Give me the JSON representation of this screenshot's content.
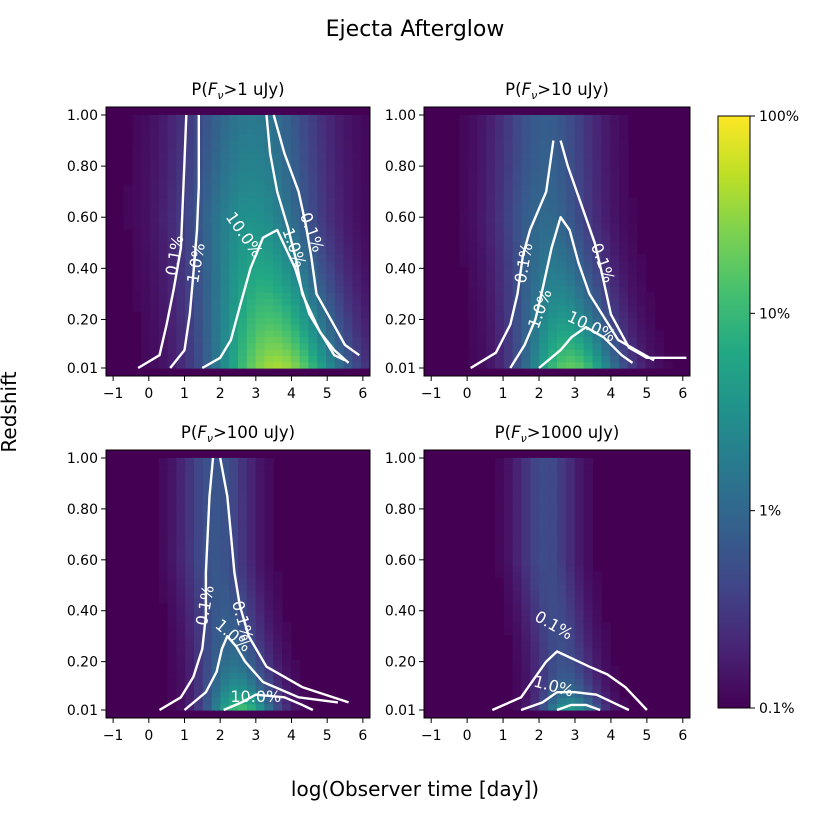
{
  "figure": {
    "title": "Ejecta Afterglow",
    "xlabel": "log(Observer time [day])",
    "ylabel": "Redshift"
  },
  "colorbar": {
    "ticks": [
      "100%",
      "10%",
      "1%",
      "0.1%"
    ],
    "scale": "log",
    "range": [
      0.1,
      100
    ],
    "colormap": "viridis"
  },
  "chart_data": [
    {
      "type": "heatmap",
      "title": "P(F_ν>1 uJy)",
      "title_prefix": "P(",
      "title_var": "F",
      "title_sub": "ν",
      "title_suffix": ">1 uJy)",
      "xlim": [
        -1.2,
        6.2
      ],
      "xticks": [
        "−1",
        "0",
        "1",
        "2",
        "3",
        "4",
        "5",
        "6"
      ],
      "yticks": [
        "0.01",
        "0.20",
        "0.40",
        "0.60",
        "0.80",
        "1.00"
      ],
      "grid": false,
      "params": {
        "t_peak": 3.6,
        "spread": 1.9,
        "z_decay": 0.55,
        "max_log_pct": 1.65
      },
      "contours": [
        {
          "label": "0.1%",
          "points": [
            [
              -0.3,
              0.01
            ],
            [
              0.3,
              0.06
            ],
            [
              0.5,
              0.18
            ],
            [
              0.7,
              0.32
            ],
            [
              0.9,
              0.48
            ],
            [
              0.95,
              0.65
            ],
            [
              1.0,
              0.82
            ],
            [
              1.05,
              1.0
            ]
          ]
        },
        {
          "label": "1.0%",
          "points": [
            [
              0.6,
              0.01
            ],
            [
              1.0,
              0.08
            ],
            [
              1.15,
              0.22
            ],
            [
              1.25,
              0.38
            ],
            [
              1.35,
              0.55
            ],
            [
              1.4,
              0.72
            ],
            [
              1.4,
              0.88
            ],
            [
              1.4,
              1.0
            ]
          ]
        },
        {
          "label": "10.0%",
          "points": [
            [
              1.5,
              0.01
            ],
            [
              2.0,
              0.05
            ],
            [
              2.3,
              0.12
            ],
            [
              2.55,
              0.25
            ],
            [
              2.85,
              0.4
            ],
            [
              3.2,
              0.52
            ],
            [
              3.6,
              0.55
            ],
            [
              4.1,
              0.4
            ],
            [
              4.5,
              0.22
            ],
            [
              5.2,
              0.06
            ],
            [
              5.5,
              0.04
            ]
          ]
        },
        {
          "label": "1.0%",
          "points": [
            [
              3.3,
              1.0
            ],
            [
              3.4,
              0.85
            ],
            [
              3.6,
              0.7
            ],
            [
              3.9,
              0.56
            ],
            [
              4.15,
              0.42
            ],
            [
              4.3,
              0.3
            ],
            [
              4.8,
              0.15
            ],
            [
              5.2,
              0.08
            ],
            [
              5.6,
              0.03
            ]
          ]
        },
        {
          "label": "0.1%",
          "points": [
            [
              3.5,
              1.0
            ],
            [
              3.8,
              0.85
            ],
            [
              4.2,
              0.7
            ],
            [
              4.4,
              0.57
            ],
            [
              4.55,
              0.45
            ],
            [
              4.7,
              0.3
            ],
            [
              5.1,
              0.2
            ],
            [
              5.5,
              0.1
            ],
            [
              5.9,
              0.06
            ]
          ]
        }
      ],
      "contour_labels": [
        {
          "text": "0.1%",
          "x": 0.75,
          "y": 0.45,
          "angle": -80
        },
        {
          "text": "1.0%",
          "x": 1.35,
          "y": 0.42,
          "angle": -80
        },
        {
          "text": "10.0%",
          "x": 2.65,
          "y": 0.53,
          "angle": 55
        },
        {
          "text": "1.0%",
          "x": 4.05,
          "y": 0.48,
          "angle": 70
        },
        {
          "text": "0.1%",
          "x": 4.55,
          "y": 0.54,
          "angle": 70
        }
      ]
    },
    {
      "type": "heatmap",
      "title": "P(F_ν>10 uJy)",
      "title_prefix": "P(",
      "title_var": "F",
      "title_sub": "ν",
      "title_suffix": ">10 uJy)",
      "xlim": [
        -1.2,
        6.2
      ],
      "xticks": [
        "−1",
        "0",
        "1",
        "2",
        "3",
        "4",
        "5",
        "6"
      ],
      "yticks": [
        "0.01",
        "0.20",
        "0.40",
        "0.60",
        "0.80",
        "1.00"
      ],
      "grid": false,
      "params": {
        "t_peak": 2.9,
        "spread": 1.4,
        "z_decay": 0.3,
        "max_log_pct": 1.35
      },
      "contours": [
        {
          "label": "0.1%",
          "points": [
            [
              0.1,
              0.01
            ],
            [
              0.8,
              0.07
            ],
            [
              1.2,
              0.18
            ],
            [
              1.4,
              0.3
            ],
            [
              1.55,
              0.45
            ],
            [
              1.75,
              0.55
            ],
            [
              2.2,
              0.7
            ],
            [
              2.4,
              0.9
            ]
          ]
        },
        {
          "label": "1.0%",
          "points": [
            [
              1.2,
              0.01
            ],
            [
              1.6,
              0.1
            ],
            [
              1.9,
              0.2
            ],
            [
              2.1,
              0.32
            ],
            [
              2.35,
              0.48
            ],
            [
              2.6,
              0.6
            ],
            [
              2.85,
              0.55
            ],
            [
              3.1,
              0.42
            ],
            [
              3.4,
              0.3
            ],
            [
              4.2,
              0.12
            ],
            [
              5.2,
              0.04
            ]
          ]
        },
        {
          "label": "10.0%",
          "points": [
            [
              2.0,
              0.01
            ],
            [
              2.6,
              0.08
            ],
            [
              2.9,
              0.13
            ],
            [
              3.3,
              0.17
            ],
            [
              3.8,
              0.13
            ],
            [
              4.3,
              0.06
            ],
            [
              4.6,
              0.03
            ]
          ]
        },
        {
          "label": "0.1%",
          "points": [
            [
              2.6,
              0.9
            ],
            [
              2.8,
              0.8
            ],
            [
              3.1,
              0.68
            ],
            [
              3.55,
              0.5
            ],
            [
              3.75,
              0.38
            ],
            [
              4.0,
              0.22
            ],
            [
              4.5,
              0.09
            ],
            [
              5.0,
              0.05
            ],
            [
              6.1,
              0.05
            ]
          ]
        }
      ],
      "contour_labels": [
        {
          "text": "0.1%",
          "x": 1.6,
          "y": 0.42,
          "angle": -80
        },
        {
          "text": "1.0%",
          "x": 2.05,
          "y": 0.24,
          "angle": -70
        },
        {
          "text": "10.0%",
          "x": 3.45,
          "y": 0.17,
          "angle": 25
        },
        {
          "text": "0.1%",
          "x": 3.75,
          "y": 0.42,
          "angle": 70
        }
      ]
    },
    {
      "type": "heatmap",
      "title": "P(F_ν>100 uJy)",
      "title_prefix": "P(",
      "title_var": "F",
      "title_sub": "ν",
      "title_suffix": ">100 uJy)",
      "xlim": [
        -1.2,
        6.2
      ],
      "xticks": [
        "−1",
        "0",
        "1",
        "2",
        "3",
        "4",
        "5",
        "6"
      ],
      "yticks": [
        "0.01",
        "0.20",
        "0.40",
        "0.60",
        "0.80",
        "1.00"
      ],
      "grid": false,
      "params": {
        "t_peak": 2.6,
        "spread": 1.0,
        "z_decay": 0.14,
        "max_log_pct": 1.25
      },
      "contours": [
        {
          "label": "0.1%",
          "points": [
            [
              0.3,
              0.01
            ],
            [
              0.9,
              0.06
            ],
            [
              1.25,
              0.14
            ],
            [
              1.5,
              0.25
            ],
            [
              1.6,
              0.38
            ],
            [
              1.6,
              0.55
            ],
            [
              1.65,
              0.7
            ],
            [
              1.7,
              0.85
            ],
            [
              1.8,
              1.0
            ]
          ]
        },
        {
          "label": "1.0%",
          "points": [
            [
              1.0,
              0.01
            ],
            [
              1.6,
              0.08
            ],
            [
              1.9,
              0.16
            ],
            [
              2.05,
              0.25
            ],
            [
              2.2,
              0.3
            ],
            [
              2.45,
              0.26
            ],
            [
              2.7,
              0.2
            ],
            [
              3.2,
              0.12
            ],
            [
              4.2,
              0.06
            ],
            [
              5.3,
              0.04
            ]
          ]
        },
        {
          "label": "10.0%",
          "points": [
            [
              2.1,
              0.01
            ],
            [
              2.6,
              0.04
            ],
            [
              3.0,
              0.07
            ],
            [
              3.8,
              0.06
            ],
            [
              4.3,
              0.03
            ],
            [
              4.6,
              0.01
            ]
          ]
        },
        {
          "label": "0.1%",
          "points": [
            [
              2.0,
              1.0
            ],
            [
              2.2,
              0.85
            ],
            [
              2.3,
              0.7
            ],
            [
              2.4,
              0.55
            ],
            [
              2.55,
              0.42
            ],
            [
              2.8,
              0.3
            ],
            [
              3.3,
              0.18
            ],
            [
              4.3,
              0.1
            ],
            [
              5.6,
              0.04
            ]
          ]
        }
      ],
      "contour_labels": [
        {
          "text": "0.1%",
          "x": 1.6,
          "y": 0.42,
          "angle": -80
        },
        {
          "text": "1.0%",
          "x": 2.35,
          "y": 0.3,
          "angle": 40
        },
        {
          "text": "10.0%",
          "x": 3.0,
          "y": 0.06,
          "angle": 0
        },
        {
          "text": "0.1%",
          "x": 2.6,
          "y": 0.36,
          "angle": 75
        }
      ]
    },
    {
      "type": "heatmap",
      "title": "P(F_ν>1000 uJy)",
      "title_prefix": "P(",
      "title_var": "F",
      "title_sub": "ν",
      "title_suffix": ">1000 uJy)",
      "xlim": [
        -1.2,
        6.2
      ],
      "xticks": [
        "−1",
        "0",
        "1",
        "2",
        "3",
        "4",
        "5",
        "6"
      ],
      "yticks": [
        "0.01",
        "0.20",
        "0.40",
        "0.60",
        "0.80",
        "1.00"
      ],
      "grid": false,
      "params": {
        "t_peak": 2.9,
        "spread": 0.85,
        "z_decay": 0.07,
        "max_log_pct": 0.95
      },
      "contours": [
        {
          "label": "0.1%",
          "points": [
            [
              0.7,
              0.01
            ],
            [
              1.5,
              0.06
            ],
            [
              1.9,
              0.14
            ],
            [
              2.2,
              0.2
            ],
            [
              2.5,
              0.24
            ],
            [
              2.8,
              0.22
            ],
            [
              3.1,
              0.2
            ],
            [
              3.4,
              0.18
            ],
            [
              3.9,
              0.15
            ],
            [
              4.4,
              0.1
            ],
            [
              5.0,
              0.01
            ]
          ]
        },
        {
          "label": "1.0%",
          "points": [
            [
              1.5,
              0.01
            ],
            [
              2.1,
              0.04
            ],
            [
              2.5,
              0.08
            ],
            [
              3.0,
              0.08
            ],
            [
              3.6,
              0.07
            ],
            [
              4.2,
              0.03
            ],
            [
              4.5,
              0.01
            ]
          ]
        },
        {
          "label": "10.0%",
          "points": [
            [
              2.5,
              0.01
            ],
            [
              2.9,
              0.03
            ],
            [
              3.3,
              0.03
            ],
            [
              3.7,
              0.01
            ]
          ]
        }
      ],
      "contour_labels": [
        {
          "text": "0.1%",
          "x": 2.4,
          "y": 0.34,
          "angle": 30
        },
        {
          "text": "1.0%",
          "x": 2.4,
          "y": 0.1,
          "angle": 15
        }
      ]
    }
  ]
}
